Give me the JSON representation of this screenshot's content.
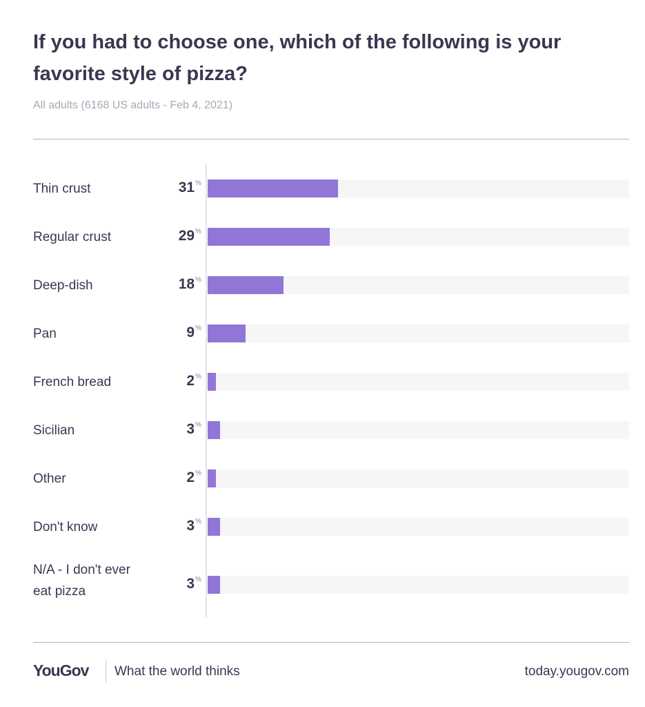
{
  "header": {
    "title": "If you had to choose one, which of the following is your favorite style of pizza?",
    "subtitle": "All adults (6168 US adults - Feb 4, 2021)"
  },
  "footer": {
    "brand": "YouGov",
    "tagline": "What the world thinks",
    "site": "today.yougov.com"
  },
  "colors": {
    "bar": "#9176d8",
    "track": "#f6f5f8",
    "text": "#3d3550"
  },
  "chart_data": {
    "type": "bar",
    "orientation": "horizontal",
    "categories": [
      "Thin crust",
      "Regular crust",
      "Deep-dish",
      "Pan",
      "French bread",
      "Sicilian",
      "Other",
      "Don't know",
      "N/A - I don't ever eat pizza"
    ],
    "values": [
      31,
      29,
      18,
      9,
      2,
      3,
      2,
      3,
      3
    ],
    "value_suffix": "%",
    "xlim": [
      0,
      100
    ]
  }
}
